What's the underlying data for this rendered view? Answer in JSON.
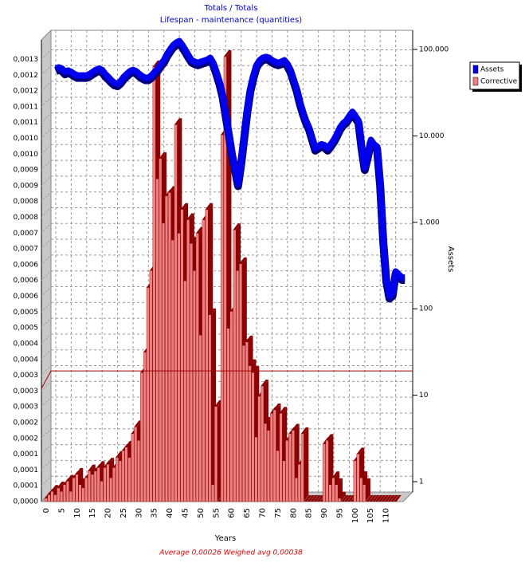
{
  "chart_data": {
    "type": "bar_line",
    "title": "Totals / Totals",
    "subtitle": "Lifespan - maintenance (quantities)",
    "x_label": "Years",
    "y2_label": "Assets",
    "footnote": "Average 0,00026   Weighed avg 0,00038",
    "reference_line": 0.00038,
    "x": [
      0,
      1,
      2,
      3,
      4,
      5,
      6,
      7,
      8,
      9,
      10,
      11,
      12,
      13,
      14,
      15,
      16,
      17,
      18,
      19,
      20,
      21,
      22,
      23,
      24,
      25,
      26,
      27,
      28,
      29,
      30,
      31,
      32,
      33,
      34,
      35,
      36,
      37,
      38,
      39,
      40,
      41,
      42,
      43,
      44,
      45,
      46,
      47,
      48,
      49,
      50,
      51,
      52,
      53,
      54,
      55,
      56,
      57,
      58,
      59,
      60,
      61,
      62,
      63,
      64,
      65,
      66,
      67,
      68,
      69,
      70,
      71,
      72,
      73,
      74,
      75,
      76,
      77,
      78,
      79,
      80,
      81,
      82,
      83,
      84,
      85,
      86,
      87,
      88,
      89,
      90,
      91,
      92,
      93,
      94,
      95,
      96,
      97,
      98,
      99,
      100,
      101,
      102,
      103,
      104,
      105,
      106,
      107,
      108,
      109,
      110,
      111,
      112,
      113
    ],
    "xlim": [
      0,
      115
    ],
    "xticks": [
      0,
      5,
      10,
      15,
      20,
      25,
      30,
      35,
      40,
      45,
      50,
      55,
      60,
      65,
      70,
      75,
      80,
      85,
      90,
      95,
      100,
      105,
      110
    ],
    "ylim": [
      0,
      0.00135
    ],
    "yticks": [
      {
        "value": 0,
        "label": "0,0000"
      },
      {
        "value": 4.65e-05,
        "label": "0,0001"
      },
      {
        "value": 9.3e-05,
        "label": "0,0001"
      },
      {
        "value": 0.0001395,
        "label": "0,0001"
      },
      {
        "value": 0.000186,
        "label": "0,0002"
      },
      {
        "value": 0.0002325,
        "label": "0,0002"
      },
      {
        "value": 0.000279,
        "label": "0,0003"
      },
      {
        "value": 0.0003255,
        "label": "0,0003"
      },
      {
        "value": 0.000372,
        "label": "0,0003"
      },
      {
        "value": 0.0004185,
        "label": "0,0004"
      },
      {
        "value": 0.000465,
        "label": "0,0004"
      },
      {
        "value": 0.0005115,
        "label": "0,0005"
      },
      {
        "value": 0.000558,
        "label": "0,0005"
      },
      {
        "value": 0.0006045,
        "label": "0,0006"
      },
      {
        "value": 0.000651,
        "label": "0,0006"
      },
      {
        "value": 0.0006975,
        "label": "0,0006"
      },
      {
        "value": 0.000744,
        "label": "0,0007"
      },
      {
        "value": 0.0007905,
        "label": "0,0007"
      },
      {
        "value": 0.000837,
        "label": "0,0008"
      },
      {
        "value": 0.0008835,
        "label": "0,0008"
      },
      {
        "value": 0.00093,
        "label": "0,0009"
      },
      {
        "value": 0.0009765,
        "label": "0,0009"
      },
      {
        "value": 0.001023,
        "label": "0,0010"
      },
      {
        "value": 0.0010695,
        "label": "0,0010"
      },
      {
        "value": 0.001116,
        "label": "0,0011"
      },
      {
        "value": 0.0011625,
        "label": "0,0011"
      },
      {
        "value": 0.001209,
        "label": "0,0012"
      },
      {
        "value": 0.0012555,
        "label": "0,0012"
      },
      {
        "value": 0.001302,
        "label": "0,0013"
      }
    ],
    "y2lim": [
      1,
      100000
    ],
    "y2log": true,
    "y2ticks": [
      1,
      10,
      100,
      {
        "value": 1000,
        "label": "1.000"
      },
      {
        "value": 10000,
        "label": "10.000"
      },
      {
        "value": 100000,
        "label": "100.000"
      }
    ],
    "grid": true,
    "legend": "right",
    "series": [
      {
        "name": "Assets",
        "color": "#0000ee",
        "axis": "y2",
        "values": [
          60000,
          62000,
          60000,
          55000,
          57000,
          55000,
          52000,
          50000,
          50000,
          50000,
          50000,
          52000,
          55000,
          58000,
          60000,
          58000,
          52000,
          48000,
          44000,
          41000,
          40000,
          43000,
          48000,
          52000,
          56000,
          58000,
          56000,
          52000,
          49000,
          47000,
          47000,
          50000,
          55000,
          60000,
          68000,
          75000,
          88000,
          100000,
          112000,
          120000,
          125000,
          112000,
          98000,
          85000,
          75000,
          72000,
          70000,
          72000,
          74000,
          76000,
          80000,
          70000,
          55000,
          42000,
          30000,
          18000,
          11000,
          6500,
          4300,
          2800,
          5000,
          10000,
          20000,
          35000,
          50000,
          66000,
          75000,
          80000,
          82000,
          80000,
          75000,
          72000,
          70000,
          72000,
          75000,
          68000,
          58000,
          45000,
          35000,
          25000,
          19000,
          15000,
          12500,
          9500,
          7200,
          7600,
          8000,
          7800,
          7200,
          8000,
          9000,
          10500,
          12500,
          14000,
          15000,
          17000,
          19000,
          17000,
          15000,
          7500,
          4300,
          6000,
          9000,
          8000,
          7500,
          2800,
          630,
          220,
          140,
          150,
          270,
          250,
          230,
          230
        ]
      },
      {
        "name": "Corrective",
        "color": "#f08080",
        "values": [
          1e-05,
          2e-05,
          3e-05,
          2e-05,
          4e-05,
          3e-05,
          5e-05,
          6e-05,
          3e-05,
          7e-05,
          8e-05,
          5e-05,
          4e-05,
          7e-05,
          9e-05,
          8e-05,
          9e-05,
          0.0001,
          6e-05,
          0.0001,
          0.00011,
          7e-05,
          0.0001,
          0.00013,
          0.00012,
          0.00015,
          0.00016,
          0.00013,
          0.0002,
          0.00022,
          0.00018,
          0.00038,
          0.00044,
          0.00063,
          0.00068,
          0.00128,
          0.00095,
          0.00101,
          0.00082,
          0.0009,
          0.00091,
          0.00077,
          0.00111,
          0.00079,
          0.00086,
          0.00065,
          0.00083,
          0.00076,
          0.00068,
          0.00079,
          0.00049,
          0.00083,
          0.00086,
          0.00055,
          5e-05,
          0.00028,
          0,
          0.00108,
          0.00131,
          0.00051,
          0.00056,
          0.0008,
          0.00068,
          0.0007,
          0.00046,
          0.00047,
          0.0004,
          0.00038,
          0.00019,
          0.00031,
          0.00034,
          0.00023,
          0.00021,
          0.00026,
          0.00027,
          0.00015,
          0.00026,
          0.00012,
          0.00018,
          0.0002,
          0.00021,
          7e-05,
          0.00011,
          0.0002,
          0,
          0,
          0,
          0,
          0,
          0,
          0.00017,
          0.00018,
          5e-05,
          7e-05,
          5e-05,
          1e-05,
          0,
          0,
          0,
          0,
          0.00012,
          0.00014,
          7e-05,
          5e-05,
          0,
          0,
          0,
          0,
          0,
          0,
          0,
          0,
          0,
          0
        ]
      }
    ]
  }
}
